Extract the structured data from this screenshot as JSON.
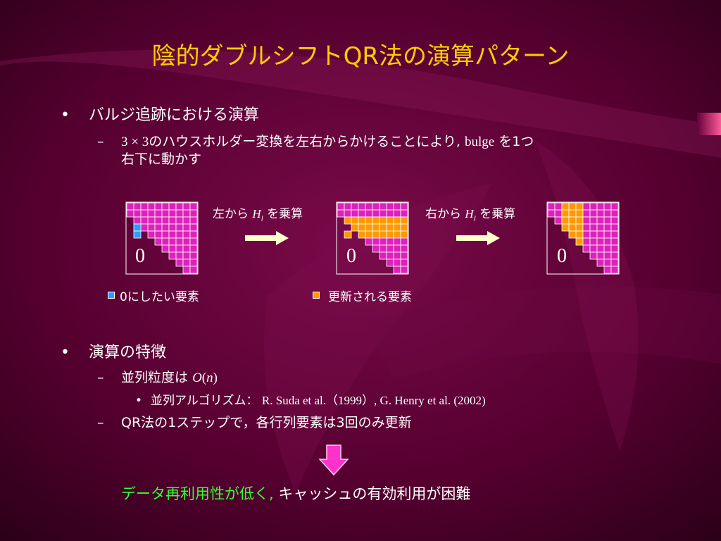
{
  "slide": {
    "title": "陰的ダブルシフトQR法の演算パターン",
    "section1": {
      "bullet": "•",
      "heading": "バルジ追跡における演算",
      "dash": "–",
      "sub_prefix": "3 × 3",
      "sub_text1": "のハウスホルダー変換を左右からかけることにより,",
      "sub_bulge": "bulge",
      "sub_text2": "を1つ",
      "sub_text3": "右下に動かす"
    },
    "diagram": {
      "label_left_pre": "左から",
      "label_left_H": "H",
      "label_left_sub": "l",
      "label_left_post": "を乗算",
      "label_right_pre": "右から",
      "label_right_H": "H",
      "label_right_sub": "l",
      "label_right_post": "を乗算",
      "zero": "0",
      "legend_blue": "0にしたい要素",
      "legend_orange": "更新される要素",
      "colors": {
        "grid": "#dd22bb",
        "blue": "#3399ff",
        "orange": "#ff9900",
        "arrow": "#ffffcc"
      }
    },
    "section2": {
      "bullet": "•",
      "heading": "演算の特徴",
      "dash": "–",
      "sub1_text": "並列粒度は",
      "sub1_O": "O",
      "sub1_paren_open": "(",
      "sub1_n": "n",
      "sub1_paren_close": ")",
      "sub_bullet": "•",
      "sub1_bullet_label": "並列アルゴリズム：",
      "sub1_bullet_refs": "R. Suda et al.（1999）, G. Henry et al. (2002)",
      "sub2_text": "QR法の1ステップで，各行列要素は3回のみ更新"
    },
    "conclusion": {
      "green_text": "データ再利用性が低く,",
      "white_text": "キャッシュの有効利用が困難",
      "arrow_color": "#ff33cc"
    }
  }
}
